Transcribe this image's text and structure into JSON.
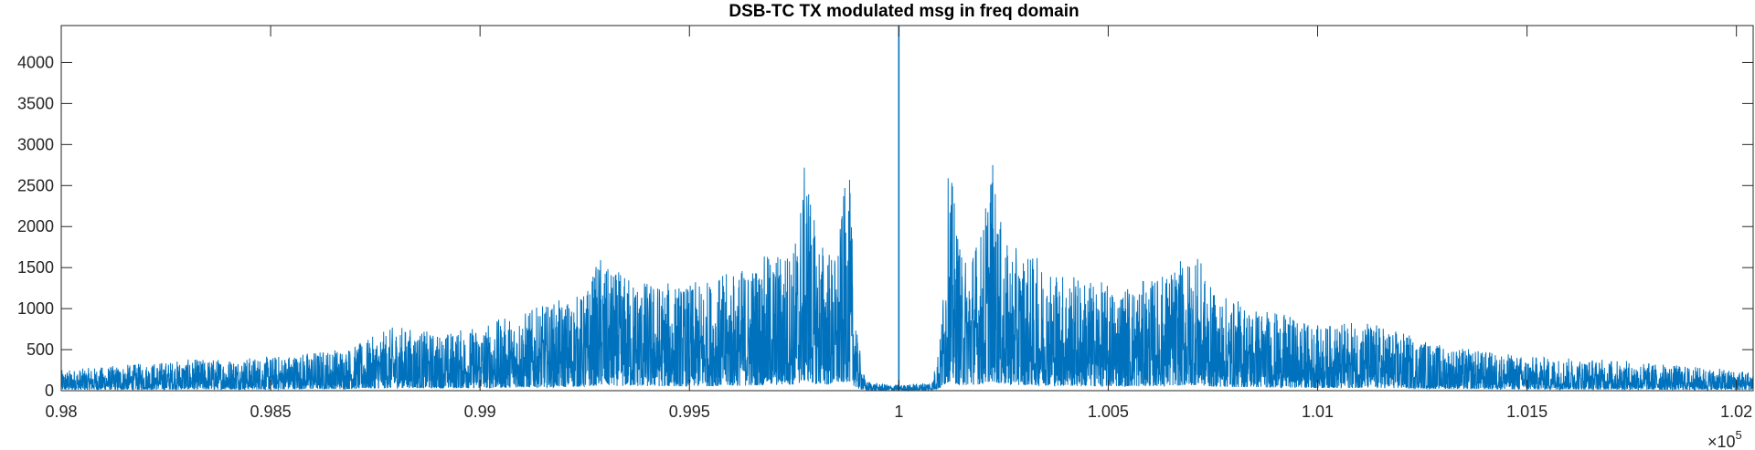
{
  "chart_data": {
    "type": "line",
    "title": "DSB-TC TX modulated msg in freq domain",
    "xlabel": "",
    "ylabel": "",
    "x_multiplier": "×10",
    "x_multiplier_exponent": "5",
    "xlim": [
      0.98,
      1.0204
    ],
    "ylim": [
      0,
      4450
    ],
    "xticks": [
      0.98,
      0.985,
      0.99,
      0.995,
      1,
      1.005,
      1.01,
      1.015,
      1.02
    ],
    "xtick_labels": [
      "0.98",
      "0.985",
      "0.99",
      "0.995",
      "1",
      "1.005",
      "1.01",
      "1.015",
      "1.02"
    ],
    "yticks": [
      0,
      500,
      1000,
      1500,
      2000,
      2500,
      3000,
      3500,
      4000
    ],
    "ytick_labels": [
      "0",
      "500",
      "1000",
      "1500",
      "2000",
      "2500",
      "3000",
      "3500",
      "4000"
    ],
    "grid": false,
    "color": "#0072BD",
    "carrier": {
      "x": 1.0,
      "y": 4450
    },
    "series": [
      {
        "envelope_x": [
          0.98,
          0.983,
          0.985,
          0.987,
          0.988,
          0.989,
          0.99,
          0.9925,
          0.9929,
          0.993,
          0.994,
          0.995,
          0.996,
          0.997,
          0.9975,
          0.9978,
          0.998,
          0.9985,
          0.9988,
          0.999,
          0.9992,
          0.9995,
          0.9998,
          1.0002,
          1.0005,
          1.0008,
          1.001,
          1.0012,
          1.0015,
          1.002,
          1.0022,
          1.0025,
          1.003,
          1.004,
          1.005,
          1.006,
          1.0071,
          1.0075,
          1.01,
          1.0112,
          1.013,
          1.015,
          1.017,
          1.02
        ],
        "envelope_y": [
          250,
          380,
          420,
          550,
          800,
          700,
          800,
          1200,
          1700,
          1500,
          1350,
          1300,
          1450,
          1700,
          1800,
          2950,
          2000,
          1650,
          2850,
          700,
          120,
          90,
          75,
          75,
          90,
          120,
          700,
          2850,
          1650,
          2000,
          2950,
          1800,
          1700,
          1450,
          1300,
          1350,
          1700,
          1200,
          800,
          850,
          550,
          420,
          380,
          250
        ]
      }
    ]
  }
}
